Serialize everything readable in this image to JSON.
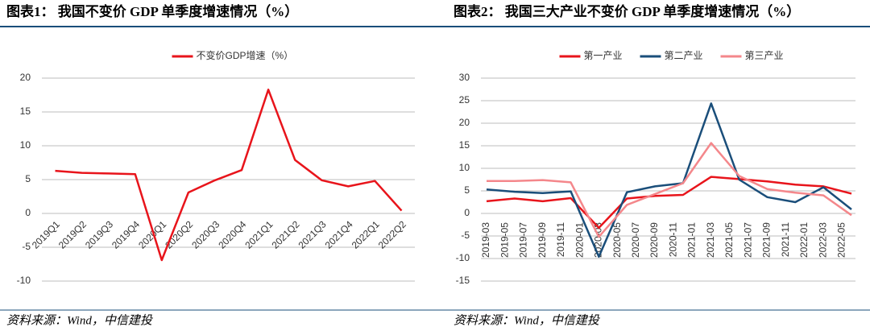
{
  "chart_data": [
    {
      "type": "line",
      "title": "图表1： 我国不变价 GDP 单季度增速情况（%）",
      "source": "资料来源：Wind，中信建投",
      "categories": [
        "2019Q1",
        "2019Q2",
        "2019Q3",
        "2019Q4",
        "2020Q1",
        "2020Q2",
        "2020Q3",
        "2020Q4",
        "2021Q1",
        "2021Q2",
        "2021Q3",
        "2021Q4",
        "2022Q1",
        "2022Q2"
      ],
      "series": [
        {
          "name": "不变价GDP增速（%）",
          "color": "#e8141b",
          "values": [
            6.3,
            6.0,
            5.9,
            5.8,
            -6.9,
            3.1,
            4.9,
            6.4,
            18.3,
            7.9,
            4.9,
            4.0,
            4.8,
            0.4
          ]
        }
      ],
      "ylim": [
        -10,
        20
      ],
      "yticks": [
        -10,
        -5,
        0,
        5,
        10,
        15,
        20
      ],
      "grid": true,
      "legend": "top"
    },
    {
      "type": "line",
      "title": "图表2： 我国三大产业不变价 GDP 单季度增速情况（%）",
      "source": "资料来源：Wind，中信建投",
      "x": [
        "2019-03",
        "2019-06",
        "2019-09",
        "2019-12",
        "2020-03",
        "2020-06",
        "2020-09",
        "2020-12",
        "2021-03",
        "2021-06",
        "2021-09",
        "2021-12",
        "2022-03",
        "2022-06"
      ],
      "xticks": [
        "2019-03",
        "2019-05",
        "2019-07",
        "2019-09",
        "2019-11",
        "2020-01",
        "2020-03",
        "2020-05",
        "2020-07",
        "2020-09",
        "2020-11",
        "2021-01",
        "2021-03",
        "2021-05",
        "2021-07",
        "2021-09",
        "2021-11",
        "2022-01",
        "2022-03",
        "2022-05"
      ],
      "series": [
        {
          "name": "第一产业",
          "color": "#e8141b",
          "values": [
            2.7,
            3.3,
            2.7,
            3.4,
            -3.2,
            3.3,
            3.9,
            4.1,
            8.1,
            7.6,
            7.1,
            6.4,
            6.0,
            4.4
          ]
        },
        {
          "name": "第二产业",
          "color": "#1a4e7a",
          "values": [
            5.3,
            4.8,
            4.5,
            4.9,
            -9.6,
            4.7,
            6.0,
            6.7,
            24.4,
            7.5,
            3.6,
            2.5,
            5.8,
            0.9
          ]
        },
        {
          "name": "第三产业",
          "color": "#f4878b",
          "values": [
            7.2,
            7.2,
            7.4,
            6.9,
            -5.2,
            1.9,
            4.3,
            6.7,
            15.6,
            8.3,
            5.4,
            4.6,
            4.0,
            -0.4
          ]
        }
      ],
      "ylim": [
        -15,
        30
      ],
      "yticks": [
        -15,
        -10,
        -5,
        0,
        5,
        10,
        15,
        20,
        25,
        30
      ],
      "grid": true,
      "legend": "top"
    }
  ]
}
